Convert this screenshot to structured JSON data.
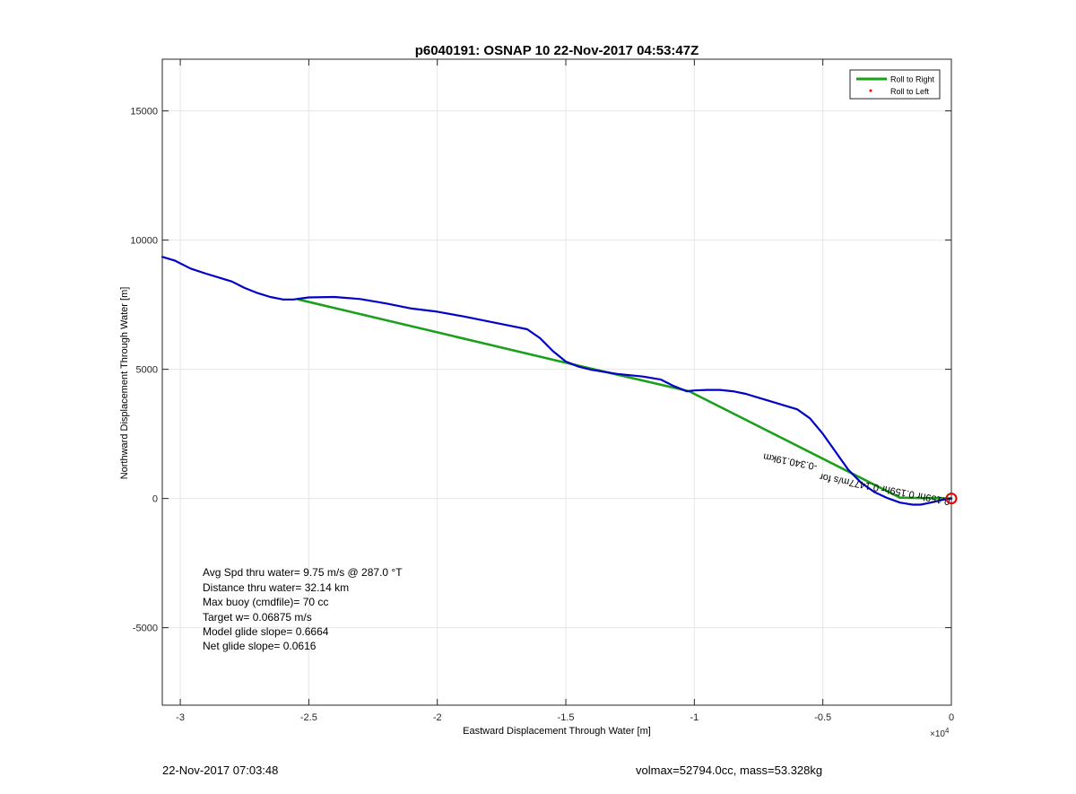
{
  "chart_data": {
    "type": "line",
    "title": "p6040191: OSNAP 10 22-Nov-2017 04:53:47Z",
    "xlabel": "Eastward Displacement Through Water [m]",
    "ylabel": "Northward Displacement Through Water [m]",
    "x_exponent_label": "×10",
    "x_exponent_power": "4",
    "x_scale_factor": 10000,
    "xlim": [
      -3.07,
      0
    ],
    "ylim": [
      -8000,
      17000
    ],
    "grid": true,
    "xticks": [
      -3,
      -2.5,
      -2,
      -1.5,
      -1,
      -0.5,
      0
    ],
    "xtick_labels": [
      "-3",
      "-2.5",
      "-2",
      "-1.5",
      "-1",
      "-0.5",
      "0"
    ],
    "yticks": [
      -5000,
      0,
      5000,
      10000,
      15000
    ],
    "ytick_labels": [
      "-5000",
      "0",
      "5000",
      "10000",
      "15000"
    ],
    "legend": {
      "position": "top-right",
      "entries": [
        {
          "label": "Roll to Right",
          "color": "#1aa01a",
          "marker": "line"
        },
        {
          "label": "Roll to Left",
          "color": "#ff0000",
          "marker": "dot"
        }
      ]
    },
    "series": [
      {
        "color": "#0000c8",
        "x": [
          -3.07,
          -3.02,
          -2.96,
          -2.9,
          -2.8,
          -2.75,
          -2.7,
          -2.65,
          -2.6,
          -2.56,
          -2.5,
          -2.4,
          -2.3,
          -2.2,
          -2.1,
          -2.0,
          -1.9,
          -1.8,
          -1.7,
          -1.65,
          -1.6,
          -1.55,
          -1.5,
          -1.45,
          -1.4,
          -1.3,
          -1.2,
          -1.13,
          -1.08,
          -1.03,
          -1.0,
          -0.95,
          -0.9,
          -0.85,
          -0.8,
          -0.75,
          -0.7,
          -0.65,
          -0.6,
          -0.55,
          -0.5,
          -0.45,
          -0.4,
          -0.35,
          -0.3,
          -0.25,
          -0.2,
          -0.15,
          -0.12,
          -0.09,
          -0.05,
          -0.02,
          0
        ],
        "y": [
          9350,
          9200,
          8900,
          8700,
          8400,
          8150,
          7950,
          7800,
          7700,
          7700,
          7780,
          7800,
          7720,
          7550,
          7350,
          7230,
          7050,
          6850,
          6650,
          6550,
          6200,
          5700,
          5300,
          5100,
          4980,
          4820,
          4720,
          4600,
          4350,
          4150,
          4180,
          4200,
          4200,
          4150,
          4050,
          3900,
          3750,
          3600,
          3450,
          3100,
          2500,
          1800,
          1100,
          600,
          250,
          20,
          -160,
          -240,
          -240,
          -180,
          -90,
          -20,
          0
        ]
      },
      {
        "color": "#1aa01a",
        "x": [
          -2.54,
          -1.52,
          -1.02,
          -0.2,
          0
        ],
        "y": [
          7700,
          5300,
          4150,
          30,
          0
        ]
      }
    ],
    "annotations": {
      "stats_lines": [
        "Avg Spd thru water=  9.75 m/s @ 287.0 °T",
        "Distance thru water= 32.14 km",
        "Max buoy (cmdfile)= 70 cc",
        "Target w= 0.06875 m/s",
        "Model glide slope= 0.6664",
        "Net glide slope= 0.0616"
      ],
      "rotated_label": "-0.340.19km",
      "rotated_label_overlap": "0.159hr 0.159hr 0.1477m/s for",
      "end_marker": {
        "color": "#e00000",
        "x": 0,
        "y": 0
      }
    }
  },
  "footer": {
    "left": "22-Nov-2017 07:03:48",
    "right": "volmax=52794.0cc, mass=53.328kg"
  }
}
